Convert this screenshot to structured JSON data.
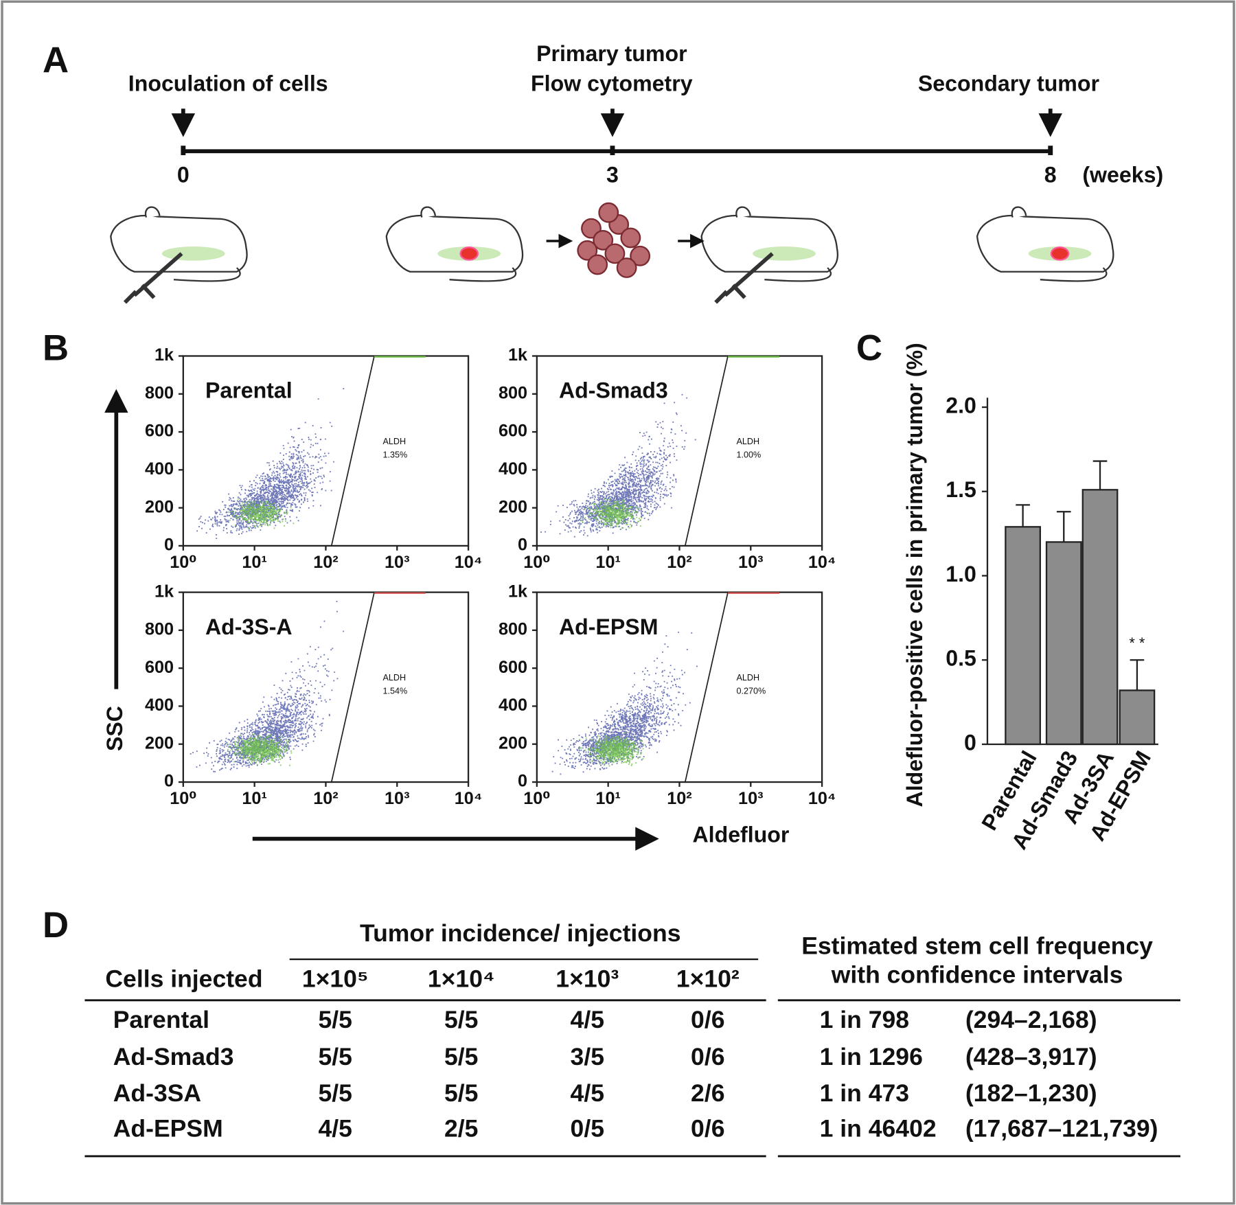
{
  "panel_a": {
    "label": "A",
    "events": [
      [
        "Inoculation of cells"
      ],
      [
        "Primary tumor",
        "Flow cytometry"
      ],
      [
        "Secondary tumor"
      ]
    ],
    "ticks": [
      "0",
      "3",
      "8"
    ],
    "unit": "(weeks)"
  },
  "panel_b": {
    "label": "B",
    "y_label": "SSC",
    "x_label": "Aldefluor",
    "ylim": [
      0,
      1000
    ],
    "yticks": [
      0,
      200,
      400,
      600,
      800,
      {
        "value": 1000,
        "label": "1k"
      }
    ],
    "xlim": [
      1,
      10000
    ],
    "xticks": [
      {
        "value": 1,
        "label": "10⁰"
      },
      {
        "value": 10,
        "label": "10¹"
      },
      {
        "value": 100,
        "label": "10²"
      },
      {
        "value": 1000,
        "label": "10³"
      },
      {
        "value": 10000,
        "label": "10⁴"
      }
    ],
    "log_x": true,
    "plots": [
      {
        "name": "Parental",
        "gate": "ALDH",
        "percent": "1.35%"
      },
      {
        "name": "Ad-Smad3",
        "gate": "ALDH",
        "percent": "1.00%"
      },
      {
        "name": "Ad-3S-A",
        "gate": "ALDH",
        "percent": "1.54%"
      },
      {
        "name": "Ad-EPSM",
        "gate": "ALDH",
        "percent": "0.270%"
      }
    ]
  },
  "chart_data": {
    "type": "bar",
    "panel_label": "C",
    "y_label": "Aldefluor-positive cells in primary tumor (%)",
    "categories": [
      "Parental",
      "Ad-Smad3",
      "Ad-3SA",
      "Ad-EPSM"
    ],
    "values": [
      1.29,
      1.2,
      1.51,
      0.32
    ],
    "errors": [
      0.13,
      0.18,
      0.17,
      0.18
    ],
    "significance": [
      null,
      null,
      null,
      "* *"
    ],
    "color": "#8c8c8c",
    "ylim": [
      0,
      2.0
    ],
    "yticks": [
      0,
      0.5,
      {
        "value": 1,
        "label": "1.0"
      },
      1.5,
      {
        "value": 2,
        "label": "2.0"
      }
    ]
  },
  "panel_d": {
    "label": "D",
    "header": {
      "cells": "Cells injected",
      "group": "Tumor incidence/ injections",
      "doses": [
        "1×10⁵",
        "1×10⁴",
        "1×10³",
        "1×10²"
      ],
      "frequency": [
        "Estimated stem cell frequency",
        "with confidence intervals"
      ]
    },
    "rows": [
      [
        "Parental",
        "5/5",
        "5/5",
        "4/5",
        "0/6",
        "1 in 798",
        "(294–2,168)"
      ],
      [
        "Ad-Smad3",
        "5/5",
        "5/5",
        "3/5",
        "0/6",
        "1 in 1296",
        "(428–3,917)"
      ],
      [
        "Ad-3SA",
        "5/5",
        "5/5",
        "4/5",
        "2/6",
        "1 in 473",
        "(182–1,230)"
      ],
      [
        "Ad-EPSM",
        "4/5",
        "2/5",
        "0/5",
        "0/6",
        "1 in 46402",
        "(17,687–121,739)"
      ]
    ]
  }
}
